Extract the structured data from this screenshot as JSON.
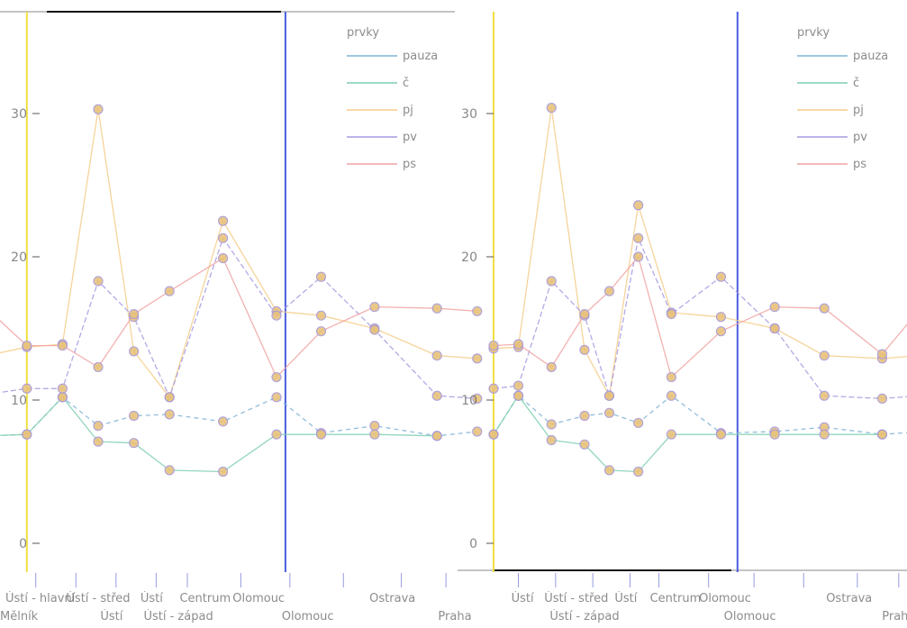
{
  "chart_data": [
    {
      "type": "line",
      "title": "",
      "legend": {
        "title": "prvky",
        "placement": "top-right",
        "entries": [
          "pauza",
          "č",
          "pj",
          "pv",
          "ps"
        ]
      },
      "y_ticks": [
        0,
        10,
        20,
        30
      ],
      "ylim": [
        0,
        38
      ],
      "x_tick_labels_row1": [
        "Ústí - hlavní",
        "Ústí - střed",
        "Ústí",
        "Centrum",
        "Olomouc",
        "Ostrava"
      ],
      "x_tick_labels_row2": [
        "Ústí",
        "Ústí - západ",
        "Olomouc",
        "Praha"
      ],
      "x_left_cut_label": "Mělník",
      "vertical_lines": {
        "yellow": 0.04,
        "blue": 0.62
      },
      "series": [
        {
          "name": "pauza",
          "color": "#7fb3d5",
          "x": [
            -0.05,
            0.04,
            0.12,
            0.2,
            0.28,
            0.36,
            0.48,
            0.6,
            0.7,
            0.82,
            0.96,
            1.05
          ],
          "values": [
            7.5,
            7.6,
            10.2,
            8.2,
            8.9,
            9.0,
            8.5,
            10.2,
            7.7,
            8.2,
            7.5,
            7.8
          ]
        },
        {
          "name": "č",
          "color": "#7fcfb0",
          "x": [
            -0.05,
            0.04,
            0.12,
            0.2,
            0.28,
            0.36,
            0.48,
            0.6,
            0.7,
            0.82,
            0.96
          ],
          "values": [
            7.5,
            7.6,
            10.2,
            7.1,
            7.0,
            5.1,
            5.0,
            7.6,
            7.6,
            7.6,
            7.5
          ]
        },
        {
          "name": "pj",
          "color": "#f5cc8a",
          "x": [
            -0.05,
            0.04,
            0.12,
            0.2,
            0.28,
            0.36,
            0.48,
            0.6,
            0.7,
            0.82,
            0.96,
            1.05
          ],
          "values": [
            13.1,
            13.7,
            13.9,
            30.3,
            13.4,
            10.2,
            22.5,
            16.2,
            15.9,
            15.0,
            13.1,
            12.9
          ]
        },
        {
          "name": "pv",
          "color": "#a79ae0",
          "x": [
            -0.05,
            0.04,
            0.12,
            0.2,
            0.28,
            0.36,
            0.48,
            0.6,
            0.7,
            0.82,
            0.96,
            1.05
          ],
          "values": [
            10.4,
            10.8,
            10.8,
            18.3,
            15.8,
            10.2,
            21.3,
            15.9,
            18.6,
            14.9,
            10.3,
            10.1
          ]
        },
        {
          "name": "ps",
          "color": "#f1a3a3",
          "x": [
            -0.05,
            0.04,
            0.12,
            0.2,
            0.28,
            0.36,
            0.48,
            0.6,
            0.7,
            0.82,
            0.96,
            1.05
          ],
          "values": [
            16.4,
            13.8,
            13.8,
            12.3,
            16.0,
            17.6,
            19.9,
            11.6,
            14.8,
            16.5,
            16.4,
            16.2
          ]
        }
      ]
    },
    {
      "type": "line",
      "title": "",
      "legend": {
        "title": "prvky",
        "placement": "top-right",
        "entries": [
          "pauza",
          "č",
          "pj",
          "pv",
          "ps"
        ]
      },
      "y_ticks": [
        0,
        10,
        20,
        30
      ],
      "ylim": [
        0,
        38
      ],
      "x_tick_labels_row1": [
        "Ústí",
        "Ústí - střed",
        "Ústí",
        "Centrum",
        "Olomouc",
        "Ostrava"
      ],
      "x_tick_labels_row2": [
        "Ústí - západ",
        "Olomouc",
        "Praha"
      ],
      "vertical_lines": {
        "yellow": 0.0,
        "blue": 0.59
      },
      "series": [
        {
          "name": "pauza",
          "color": "#7fb3d5",
          "x": [
            0.0,
            0.06,
            0.14,
            0.22,
            0.28,
            0.35,
            0.43,
            0.55,
            0.68,
            0.8,
            0.94,
            1.03
          ],
          "values": [
            7.6,
            10.3,
            8.3,
            8.9,
            9.1,
            8.4,
            10.3,
            7.7,
            7.8,
            8.1,
            7.6,
            7.8
          ]
        },
        {
          "name": "č",
          "color": "#7fcfb0",
          "x": [
            0.0,
            0.06,
            0.14,
            0.22,
            0.28,
            0.35,
            0.43,
            0.55,
            0.68,
            0.8,
            0.94
          ],
          "values": [
            7.6,
            10.3,
            7.2,
            6.9,
            5.1,
            5.0,
            7.6,
            7.6,
            7.6,
            7.6,
            7.6
          ]
        },
        {
          "name": "pj",
          "color": "#f5cc8a",
          "x": [
            0.0,
            0.06,
            0.14,
            0.22,
            0.28,
            0.35,
            0.43,
            0.55,
            0.68,
            0.8,
            0.94,
            1.03
          ],
          "values": [
            13.6,
            13.7,
            30.4,
            13.5,
            10.3,
            23.6,
            16.1,
            15.8,
            15.0,
            13.1,
            12.9,
            13.1
          ]
        },
        {
          "name": "pv",
          "color": "#a79ae0",
          "x": [
            0.0,
            0.06,
            0.14,
            0.22,
            0.28,
            0.35,
            0.43,
            0.55,
            0.68,
            0.8,
            0.94,
            1.03
          ],
          "values": [
            10.8,
            11.0,
            18.3,
            15.9,
            10.3,
            21.3,
            16.0,
            18.6,
            15.0,
            10.3,
            10.1,
            10.3
          ]
        },
        {
          "name": "ps",
          "color": "#f1a3a3",
          "x": [
            0.0,
            0.06,
            0.14,
            0.22,
            0.28,
            0.35,
            0.43,
            0.55,
            0.68,
            0.8,
            0.94,
            1.03
          ],
          "values": [
            13.8,
            13.9,
            12.3,
            16.0,
            17.6,
            20.0,
            11.6,
            14.8,
            16.5,
            16.4,
            13.2,
            16.3
          ]
        }
      ]
    }
  ]
}
